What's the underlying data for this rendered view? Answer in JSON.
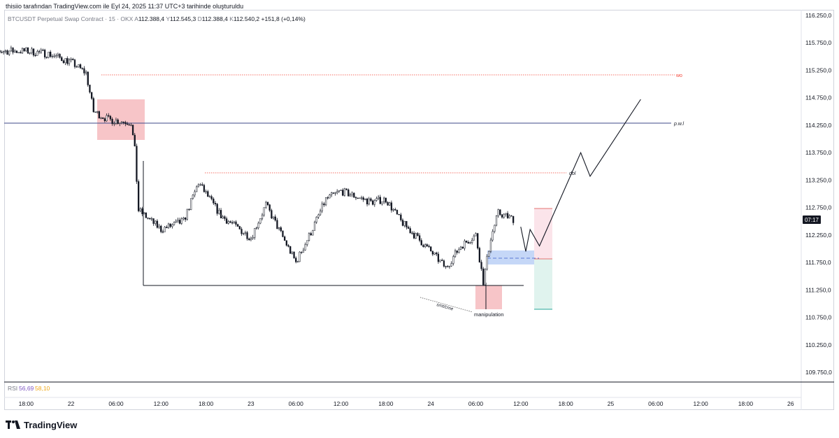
{
  "header": {
    "credit": "thisiio tarafından TradingView.com ile Eyl 24, 2025 11:37 UTC+3 tarihinde oluşturuldu"
  },
  "legend": {
    "symbol": "BTCUSDT Perpetual Swap Contract · 15 · OKX",
    "open_label": "A",
    "open": "112.388,4",
    "high_label": "Y",
    "high": "112.545,3",
    "low_label": "D",
    "low": "112.388,4",
    "close_label": "K",
    "close": "112.540,2",
    "change": "+151,8 (+0,14%)"
  },
  "rsi": {
    "label": "RSI",
    "value1": "56,69",
    "value2": "58,10",
    "color1": "#7e57c2",
    "color2": "#f0a818"
  },
  "brand": {
    "name": "TradingView"
  },
  "price_tag": {
    "value": "07:17",
    "color": "#131722"
  },
  "annotations": {
    "wo": "wo",
    "pwl": "p.w.l",
    "dol": "dol",
    "smt_cme": "smt/cme",
    "manipulation": "manipulation"
  },
  "colors": {
    "candle": "#131722",
    "red_box": "#f7c5c8",
    "blue_box": "#bbd0f6",
    "green_zone": "#e0f3ee",
    "pink_zone": "#fbe4ea",
    "dotted_red": "#f44336"
  },
  "chart_data": {
    "type": "candlestick",
    "y_axis": {
      "ticks": [
        "116.250,0",
        "115.750,0",
        "115.250,0",
        "114.750,0",
        "114.250,0",
        "113.750,0",
        "113.250,0",
        "112.750,0",
        "112.250,0",
        "111.750,0",
        "111.250,0",
        "110.750,0",
        "110.250,0",
        "109.750,0"
      ],
      "ylim": [
        109.75,
        116.25
      ]
    },
    "x_axis": {
      "ticks": [
        "18:00",
        "22",
        "06:00",
        "12:00",
        "18:00",
        "23",
        "06:00",
        "12:00",
        "18:00",
        "24",
        "06:00",
        "12:00",
        "18:00",
        "25",
        "06:00",
        "12:00",
        "18:00",
        "26"
      ]
    },
    "price_path": [
      {
        "x": "21 18:00",
        "y": 115.6
      },
      {
        "x": "21 21:00",
        "y": 115.55
      },
      {
        "x": "22 00:00",
        "y": 115.4
      },
      {
        "x": "22 02:00",
        "y": 115.2
      },
      {
        "x": "22 03:00",
        "y": 114.5
      },
      {
        "x": "22 05:00",
        "y": 114.35
      },
      {
        "x": "22 08:00",
        "y": 114.3
      },
      {
        "x": "22 08:30",
        "y": 113.8
      },
      {
        "x": "22 09:00",
        "y": 112.7
      },
      {
        "x": "22 12:00",
        "y": 112.35
      },
      {
        "x": "22 15:00",
        "y": 112.5
      },
      {
        "x": "22 17:00",
        "y": 113.2
      },
      {
        "x": "22 20:00",
        "y": 112.6
      },
      {
        "x": "23 00:00",
        "y": 112.2
      },
      {
        "x": "23 02:00",
        "y": 112.8
      },
      {
        "x": "23 06:00",
        "y": 111.75
      },
      {
        "x": "23 08:00",
        "y": 112.3
      },
      {
        "x": "23 10:00",
        "y": 112.9
      },
      {
        "x": "23 12:00",
        "y": 113.05
      },
      {
        "x": "23 16:00",
        "y": 112.85
      },
      {
        "x": "23 18:00",
        "y": 112.9
      },
      {
        "x": "23 20:00",
        "y": 112.5
      },
      {
        "x": "24 00:00",
        "y": 111.95
      },
      {
        "x": "24 02:00",
        "y": 111.65
      },
      {
        "x": "24 04:00",
        "y": 112.05
      },
      {
        "x": "24 06:00",
        "y": 112.25
      },
      {
        "x": "24 07:00",
        "y": 111.4
      },
      {
        "x": "24 08:00",
        "y": 112.2
      },
      {
        "x": "24 09:00",
        "y": 112.65
      },
      {
        "x": "24 11:00",
        "y": 112.54
      }
    ],
    "levels": [
      {
        "label": "wo",
        "price": 115.17
      },
      {
        "label": "p.w.l",
        "price": 114.3
      },
      {
        "label": "dol",
        "price": 113.4
      },
      {
        "label": "range low",
        "price": 111.35
      }
    ],
    "projection": [
      {
        "x": "24 12:00",
        "y": 112.4
      },
      {
        "x": "24 12:40",
        "y": 111.95
      },
      {
        "x": "24 13:15",
        "y": 112.35
      },
      {
        "x": "24 14:30",
        "y": 112.05
      },
      {
        "x": "24 20:00",
        "y": 113.75
      },
      {
        "x": "24 21:15",
        "y": 113.32
      },
      {
        "x": "25 04:00",
        "y": 114.72
      }
    ],
    "position": {
      "entry": 111.85,
      "target_top": 112.75,
      "stop_bottom": 110.95
    },
    "rsi": {
      "values": [
        56.69,
        58.1
      ]
    }
  }
}
